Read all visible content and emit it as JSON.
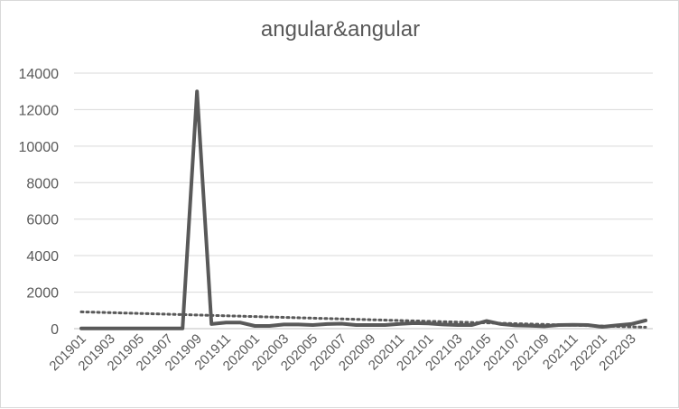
{
  "chart_data": {
    "type": "line",
    "title": "angular&angular",
    "xlabel": "",
    "ylabel": "",
    "ylim": [
      0,
      14000
    ],
    "yticks": [
      0,
      2000,
      4000,
      6000,
      8000,
      10000,
      12000,
      14000
    ],
    "grid": "horizontal",
    "x": [
      "201901",
      "201902",
      "201903",
      "201904",
      "201905",
      "201906",
      "201907",
      "201908",
      "201909",
      "201910",
      "201911",
      "201912",
      "202001",
      "202002",
      "202003",
      "202004",
      "202005",
      "202006",
      "202007",
      "202008",
      "202009",
      "202010",
      "202011",
      "202012",
      "202101",
      "202102",
      "202103",
      "202104",
      "202105",
      "202106",
      "202107",
      "202108",
      "202109",
      "202110",
      "202111",
      "202112",
      "202201",
      "202202",
      "202203",
      "202204"
    ],
    "xtick_labels": [
      "201901",
      "201903",
      "201905",
      "201907",
      "201909",
      "201911",
      "202001",
      "202003",
      "202005",
      "202007",
      "202009",
      "202011",
      "202101",
      "202103",
      "202105",
      "202107",
      "202109",
      "202111",
      "202201",
      "202203"
    ],
    "series": [
      {
        "values": [
          10,
          10,
          10,
          10,
          10,
          10,
          10,
          10,
          13000,
          250,
          330,
          330,
          150,
          150,
          230,
          230,
          200,
          250,
          270,
          200,
          200,
          200,
          260,
          300,
          280,
          230,
          200,
          200,
          420,
          250,
          180,
          160,
          130,
          200,
          210,
          200,
          100,
          180,
          250,
          450
        ],
        "color": "#595959",
        "style": "solid"
      }
    ],
    "trendline": {
      "type": "linear",
      "start": 920,
      "end": 80,
      "color": "#595959",
      "style": "dotted"
    }
  }
}
